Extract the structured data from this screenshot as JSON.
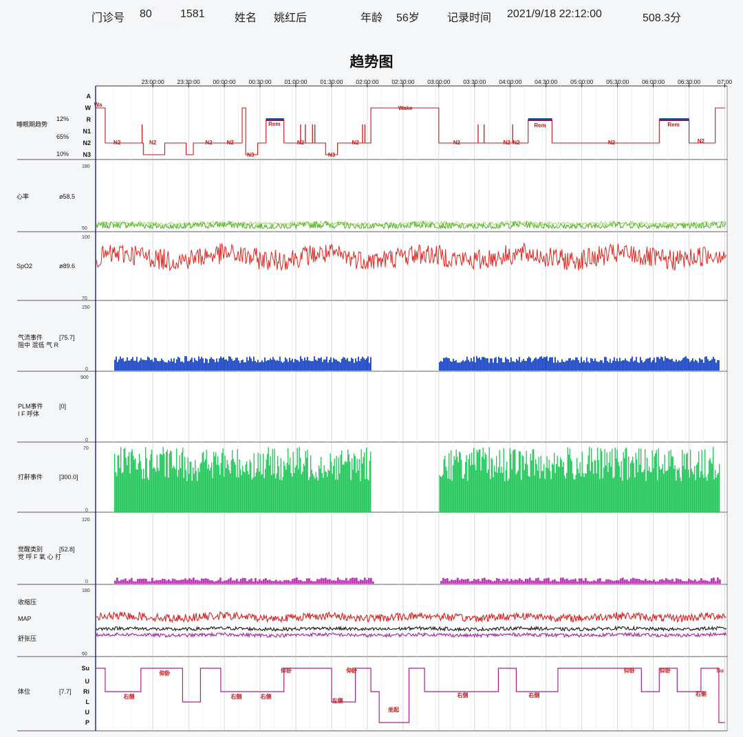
{
  "header": {
    "clinic_no_label": "门诊号",
    "clinic_no_value": "80",
    "clinic_no_value_tail": "1581",
    "name_label": "姓名",
    "name_value": "姚红后",
    "age_label": "年龄",
    "age_value": "56岁",
    "record_time_label": "记录时间",
    "record_time_value": "2021/9/18 22:12:00",
    "duration": "508.3分"
  },
  "title": "趋势图",
  "chart_data": [
    {
      "type": "line",
      "name": "睡眠期趋势",
      "x_ticks": [
        "23:00:00",
        "23:30:00",
        "00:00:00",
        "00:30:00",
        "01:00:00",
        "01:30:00",
        "02:00:00",
        "02:30:00",
        "03:00:00",
        "03:30:00",
        "04:00:00",
        "04:30:00",
        "05:00:00",
        "05:30:00",
        "06:00:00",
        "06:30:00",
        "07:00"
      ],
      "stage_levels": [
        "A",
        "W",
        "R",
        "N1",
        "N2",
        "N3"
      ],
      "percent_labels": [
        "12%",
        "65%",
        "10%"
      ],
      "segment_labels": [
        "Wa",
        "N2",
        "N2",
        "N2",
        "N2",
        "N3",
        "Rem",
        "N2",
        "N3",
        "N2",
        "Wake",
        "N2",
        "N2",
        "N2",
        "Rem",
        "N2",
        "Rem",
        "N2"
      ],
      "stages": [
        {
          "start": "22:12",
          "end": "22:20",
          "stage": "W"
        },
        {
          "start": "22:20",
          "end": "22:52",
          "stage": "N2"
        },
        {
          "start": "22:52",
          "end": "23:10",
          "stage": "N3"
        },
        {
          "start": "23:10",
          "end": "23:28",
          "stage": "N2"
        },
        {
          "start": "23:28",
          "end": "23:34",
          "stage": "N3"
        },
        {
          "start": "23:34",
          "end": "00:15",
          "stage": "N2"
        },
        {
          "start": "00:15",
          "end": "00:18",
          "stage": "W"
        },
        {
          "start": "00:18",
          "end": "00:28",
          "stage": "N3"
        },
        {
          "start": "00:28",
          "end": "00:35",
          "stage": "N2"
        },
        {
          "start": "00:35",
          "end": "00:50",
          "stage": "R"
        },
        {
          "start": "00:50",
          "end": "01:25",
          "stage": "N2"
        },
        {
          "start": "01:25",
          "end": "01:35",
          "stage": "N3"
        },
        {
          "start": "01:35",
          "end": "02:03",
          "stage": "N2"
        },
        {
          "start": "02:03",
          "end": "03:00",
          "stage": "W"
        },
        {
          "start": "03:00",
          "end": "04:00",
          "stage": "N2"
        },
        {
          "start": "04:00",
          "end": "04:15",
          "stage": "N2"
        },
        {
          "start": "04:15",
          "end": "04:35",
          "stage": "R"
        },
        {
          "start": "04:35",
          "end": "06:05",
          "stage": "N2"
        },
        {
          "start": "06:05",
          "end": "06:30",
          "stage": "R"
        },
        {
          "start": "06:30",
          "end": "06:52",
          "stage": "N2"
        },
        {
          "start": "06:52",
          "end": "07:00",
          "stage": "W"
        }
      ]
    },
    {
      "type": "line",
      "name": "心率",
      "summary": "ø58.5",
      "ylim": [
        50,
        180
      ],
      "mean": 58.5,
      "gap": [
        "02:03",
        "03:00"
      ],
      "color": "#4cad1f"
    },
    {
      "type": "line",
      "name": "SpO2",
      "summary": "ø89.6",
      "ylim": [
        70,
        100
      ],
      "mean": 89.6,
      "color": "#e0251e"
    },
    {
      "type": "bar",
      "name": "气流事件",
      "summary": "[75.7]",
      "legend": "阻中 混低 气 R",
      "ylim": [
        0,
        150
      ],
      "gap": [
        "02:03",
        "03:00"
      ],
      "color": "#1a45b8"
    },
    {
      "type": "bar",
      "name": "PLM事件",
      "summary": "[0]",
      "legend": "I F 呼体",
      "ylim": [
        0,
        900
      ]
    },
    {
      "type": "bar",
      "name": "打鼾事件",
      "summary": "[300.0]",
      "ylim": [
        0,
        70
      ],
      "gap": [
        "02:03",
        "03:00"
      ],
      "color": "#22c75a"
    },
    {
      "type": "bar",
      "name": "觉醒类别",
      "summary": "[52.8]",
      "legend": "觉 呼 F 氧 心 打",
      "ylim": [
        0,
        120
      ],
      "color": "#c036b8"
    },
    {
      "type": "line",
      "name": "血压",
      "ylim": [
        60,
        180
      ],
      "series": [
        {
          "name": "收缩压",
          "color": "#d42020"
        },
        {
          "name": "MAP",
          "color": "#151515"
        },
        {
          "name": "舒张压",
          "color": "#a020a0"
        }
      ]
    },
    {
      "type": "line",
      "name": "体位",
      "summary": "[7.7]",
      "levels": [
        "Su",
        "U",
        "Ri",
        "L",
        "U",
        "P"
      ],
      "segment_labels": [
        "右侧",
        "仰卧",
        "右侧",
        "右侧",
        "仰卧",
        "左侧",
        "仰卧",
        "坐起",
        "右侧",
        "右侧",
        "仰卧",
        "仰卧",
        "右侧",
        "Su"
      ]
    }
  ]
}
